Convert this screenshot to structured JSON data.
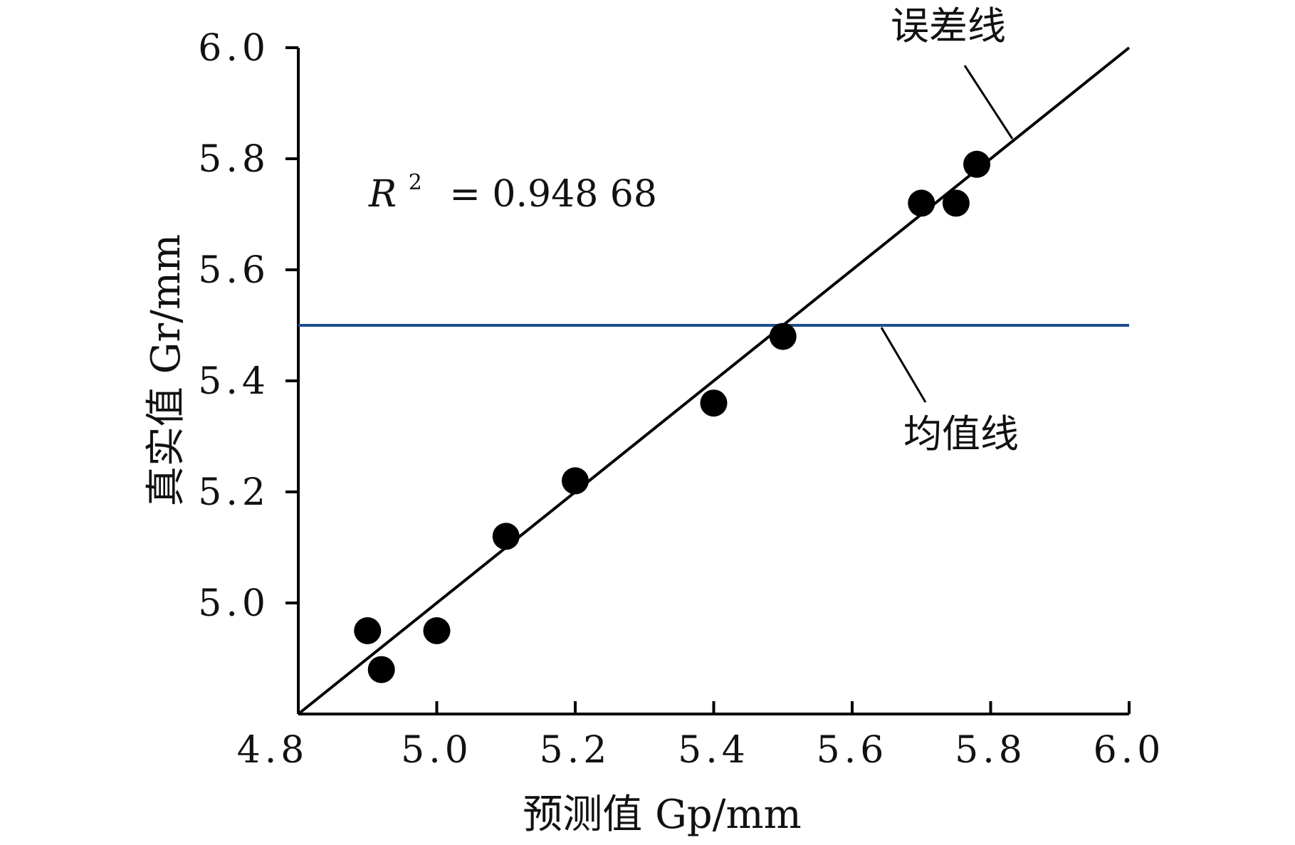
{
  "chart_data": {
    "type": "scatter",
    "xlabel": "预测值 Gp/mm",
    "ylabel": "真实值 Gr/mm",
    "xlim": [
      4.8,
      6.0
    ],
    "ylim": [
      4.8,
      6.0
    ],
    "x_ticks": [
      "4.8",
      "5.0",
      "5.2",
      "5.4",
      "5.6",
      "5.8",
      "6.0"
    ],
    "y_ticks": [
      "5.0",
      "5.2",
      "5.4",
      "5.6",
      "5.8",
      "6.0"
    ],
    "points": [
      {
        "x": 4.9,
        "y": 4.95
      },
      {
        "x": 4.92,
        "y": 4.88
      },
      {
        "x": 5.0,
        "y": 4.95
      },
      {
        "x": 5.1,
        "y": 5.12
      },
      {
        "x": 5.2,
        "y": 5.22
      },
      {
        "x": 5.4,
        "y": 5.36
      },
      {
        "x": 5.5,
        "y": 5.48
      },
      {
        "x": 5.7,
        "y": 5.72
      },
      {
        "x": 5.75,
        "y": 5.72
      },
      {
        "x": 5.78,
        "y": 5.79
      }
    ],
    "error_line": {
      "x": [
        4.8,
        6.0
      ],
      "y": [
        4.8,
        6.0
      ],
      "color": "#000000"
    },
    "mean_line": {
      "y": 5.5,
      "color": "#1f4e8c"
    },
    "annotations": {
      "error_line_label": "误差线",
      "mean_line_label": "均值线",
      "r2_label": "R",
      "r2_sup": "2",
      "r2_value": "= 0.948 68"
    }
  }
}
